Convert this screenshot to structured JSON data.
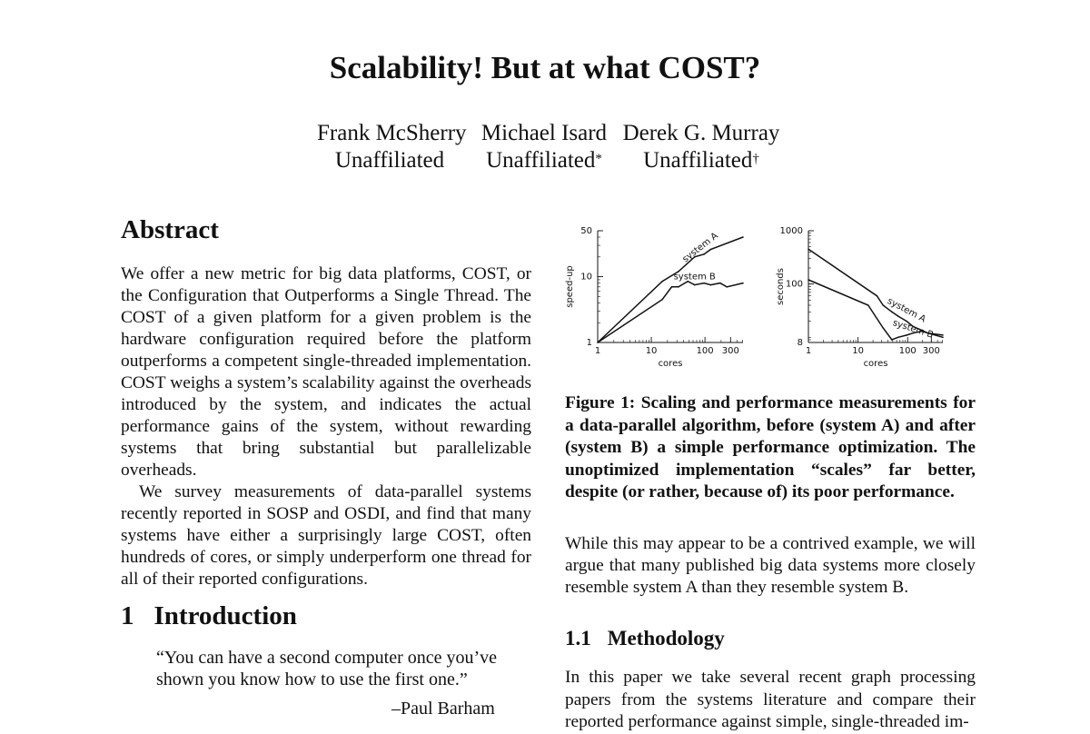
{
  "paper": {
    "title": "Scalability! But at what COST?",
    "authors": [
      {
        "name": "Frank McSherry",
        "affiliation": "Unaffiliated",
        "mark": ""
      },
      {
        "name": "Michael Isard",
        "affiliation": "Unaffiliated",
        "mark": "*"
      },
      {
        "name": "Derek G. Murray",
        "affiliation": "Unaffiliated",
        "mark": "†"
      }
    ],
    "abstract": {
      "heading": "Abstract",
      "p1": "We offer a new metric for big data platforms, COST, or the Configuration that Outperforms a Single Thread. The COST of a given platform for a given problem is the hardware configuration required before the platform outperforms a competent single-threaded implementation. COST weighs a system’s scalability against the overheads introduced by the system, and indicates the actual performance gains of the system, without rewarding systems that bring substantial but parallelizable overheads.",
      "p2": "We survey measurements of data-parallel systems recently reported in SOSP and OSDI, and find that many systems have either a surprisingly large COST, often hundreds of cores, or simply underperform one thread for all of their reported configurations."
    },
    "intro": {
      "number": "1",
      "heading": "Introduction",
      "quote_line1": "“You can have a second computer once you’ve",
      "quote_line2": "shown you know how to use the first one.”",
      "attribution": "–Paul Barham"
    },
    "figure_caption": "Figure 1:  Scaling and performance measurements for a data-parallel algorithm, before (system A) and after (system B) a simple performance optimization. The unoptimized implementation “scales” far better, despite (or rather, because of) its poor performance.",
    "para2": "While this may appear to be a contrived example, we will argue that many published big data systems more closely resemble system A than they resemble system B.",
    "methodology": {
      "number": "1.1",
      "heading": "Methodology",
      "text": "In this paper we take several recent graph processing papers from the systems literature and compare their reported performance against simple, single-threaded im-"
    }
  },
  "chart_data": [
    {
      "type": "line",
      "xlabel": "cores",
      "ylabel": "speed-up",
      "xscale": "log",
      "yscale": "log",
      "xlim": [
        1,
        512
      ],
      "ylim": [
        1,
        50
      ],
      "xticks": [
        1,
        10,
        100,
        300
      ],
      "yticks": [
        1,
        10,
        50
      ],
      "series": [
        {
          "name": "system A",
          "x": [
            1,
            16,
            32,
            64,
            96,
            128,
            512
          ],
          "y": [
            1,
            8.5,
            12,
            20,
            22,
            26,
            40
          ]
        },
        {
          "name": "system B",
          "x": [
            1,
            16,
            24,
            32,
            48,
            64,
            96,
            128,
            192,
            256,
            512
          ],
          "y": [
            1,
            4.5,
            7,
            7,
            8.5,
            7.5,
            8,
            7.5,
            8,
            7,
            8
          ]
        }
      ],
      "annotations": [
        "system A",
        "system B"
      ]
    },
    {
      "type": "line",
      "xlabel": "cores",
      "ylabel": "seconds",
      "xscale": "log",
      "yscale": "log",
      "xlim": [
        1,
        512
      ],
      "ylim": [
        8,
        1000
      ],
      "xticks": [
        1,
        10,
        100,
        300
      ],
      "yticks": [
        8,
        100,
        1000
      ],
      "series": [
        {
          "name": "system A",
          "x": [
            1,
            24,
            32,
            48,
            64,
            96,
            128,
            256,
            512
          ],
          "y": [
            450,
            60,
            40,
            30,
            25,
            20,
            16,
            12,
            10
          ]
        },
        {
          "name": "system B",
          "x": [
            1,
            16,
            32,
            48,
            64,
            96,
            128,
            192,
            256,
            512
          ],
          "y": [
            120,
            40,
            15,
            9,
            10,
            11,
            12,
            13,
            12,
            11
          ]
        }
      ],
      "annotations": [
        "system A",
        "system B"
      ]
    }
  ]
}
